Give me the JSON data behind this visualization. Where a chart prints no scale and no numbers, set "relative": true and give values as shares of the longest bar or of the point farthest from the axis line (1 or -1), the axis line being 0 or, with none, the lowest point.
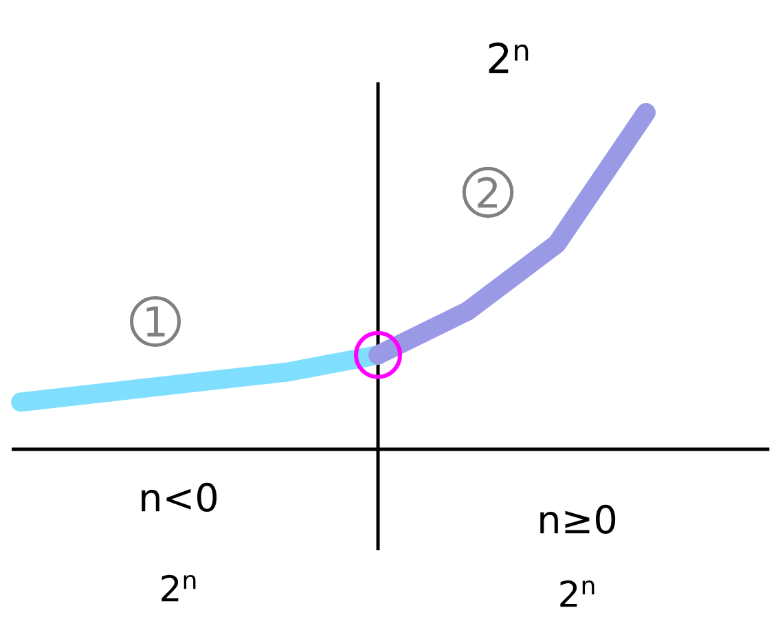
{
  "chart_data": {
    "type": "line",
    "relative": true,
    "title": "2$^{n}$",
    "categories": [
      null,
      null,
      null,
      null,
      null,
      null,
      null,
      null
    ],
    "series": [
      {
        "color": "#80dfff",
        "values": [
          0.14,
          0.17,
          0.2,
          0.23,
          0.28,
          null,
          null,
          null
        ]
      },
      {
        "color": "#9999e6",
        "values": [
          null,
          null,
          null,
          null,
          0.28,
          0.41,
          0.61,
          1
        ]
      }
    ],
    "annotations": [
      "1",
      "2",
      "n<0",
      "2$^{n}$",
      "n≥0",
      "2$^{n}$"
    ]
  }
}
